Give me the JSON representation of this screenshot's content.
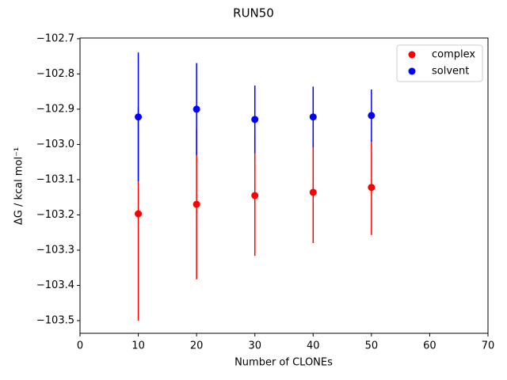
{
  "chart_data": {
    "type": "errorbar",
    "title": "RUN50",
    "xlabel": "Number of CLONEs",
    "ylabel": "ΔG / kcal mol⁻¹",
    "x": [
      10,
      20,
      30,
      40,
      50
    ],
    "series": [
      {
        "name": "complex",
        "color": "#ff0000",
        "values": [
          -103.197,
          -103.17,
          -103.145,
          -103.136,
          -103.122
        ],
        "errors": [
          0.303,
          0.213,
          0.171,
          0.144,
          0.135
        ]
      },
      {
        "name": "solvent",
        "color": "#0000ff",
        "values": [
          -102.922,
          -102.9,
          -102.929,
          -102.922,
          -102.918
        ],
        "errors": [
          0.183,
          0.131,
          0.096,
          0.086,
          0.074
        ]
      }
    ],
    "xlim": [
      0,
      70
    ],
    "xticks": [
      0,
      10,
      20,
      30,
      40,
      50,
      60,
      70
    ],
    "ylim": [
      -103.536,
      -102.698
    ],
    "yticks": [
      {
        "value": -102.7,
        "label": "−102.7"
      },
      {
        "value": -102.8,
        "label": "−102.8"
      },
      {
        "value": -102.9,
        "label": "−102.9"
      },
      {
        "value": -103.0,
        "label": "−103.0"
      },
      {
        "value": -103.1,
        "label": "−103.1"
      },
      {
        "value": -103.2,
        "label": "−103.2"
      },
      {
        "value": -103.3,
        "label": "−103.3"
      },
      {
        "value": -103.4,
        "label": "−103.4"
      },
      {
        "value": -103.5,
        "label": "−103.5"
      }
    ],
    "legend": "upper right"
  }
}
